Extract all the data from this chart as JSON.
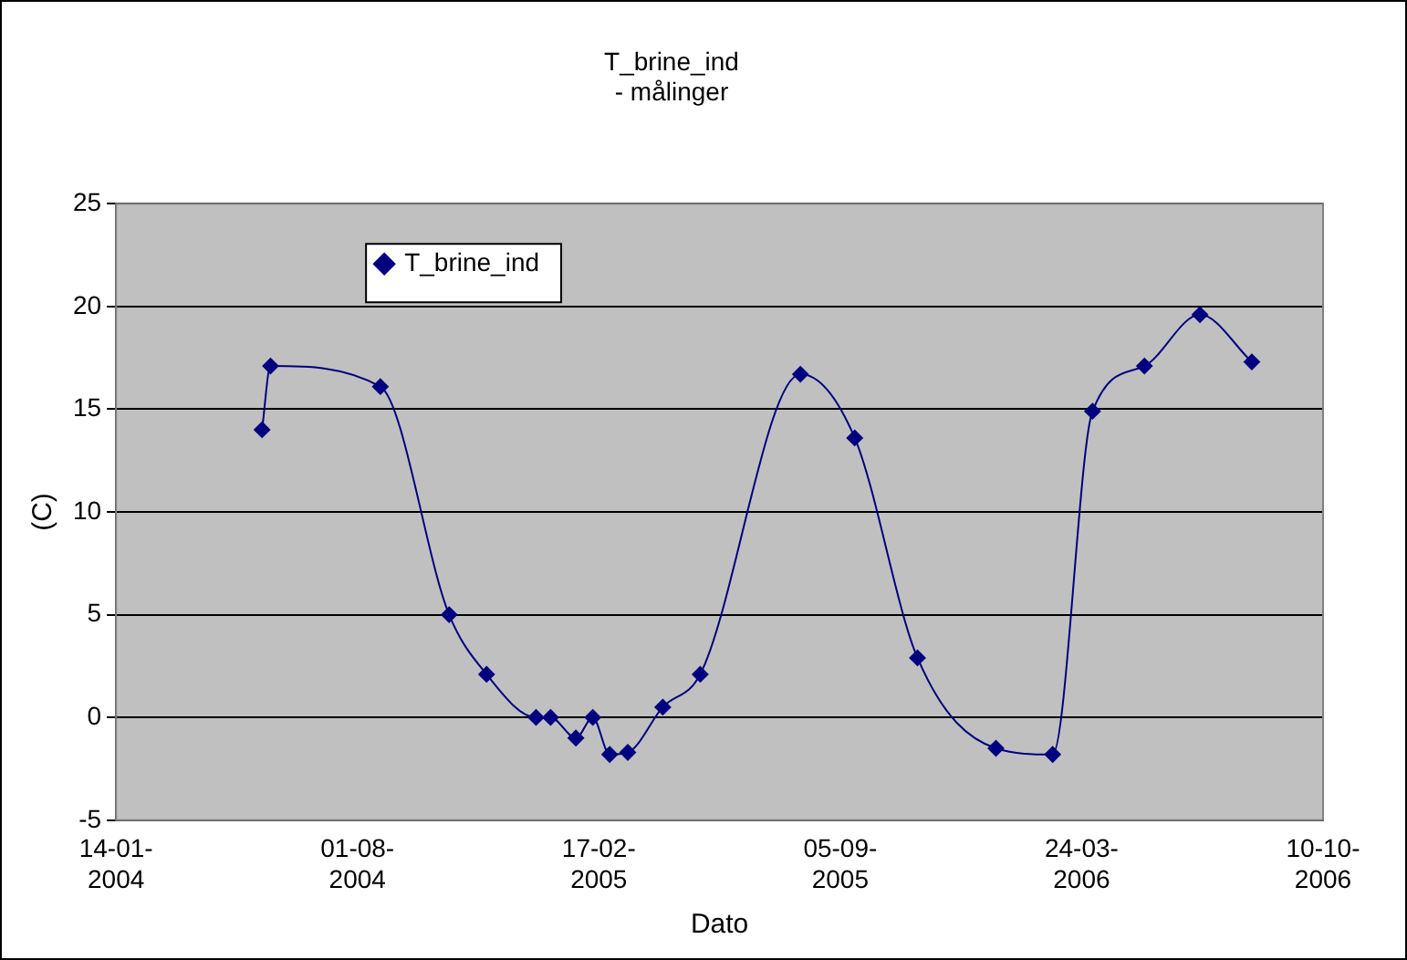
{
  "chart_data": {
    "type": "line",
    "title": "T_brine_ind",
    "subtitle": "- målinger",
    "xlabel": "Dato",
    "ylabel": "(C)",
    "x": [
      "2004-05-14",
      "2004-05-21",
      "2004-08-20",
      "2004-10-16",
      "2004-11-16",
      "2004-12-27",
      "2005-01-08",
      "2005-01-29",
      "2005-02-12",
      "2005-02-26",
      "2005-03-13",
      "2005-04-11",
      "2005-05-12",
      "2005-08-03",
      "2005-09-17",
      "2005-11-08",
      "2006-01-12",
      "2006-02-28",
      "2006-04-02",
      "2006-05-15",
      "2006-06-30",
      "2006-08-12"
    ],
    "series": [
      {
        "name": "T_brine_ind",
        "color": "#000080",
        "values": [
          14,
          17.1,
          16.1,
          5.0,
          2.1,
          0,
          0,
          -1,
          0,
          -1.8,
          -1.7,
          0.5,
          2.1,
          16.7,
          13.6,
          2.9,
          -1.5,
          -1.8,
          14.9,
          17.1,
          19.6,
          17.3
        ]
      }
    ],
    "xlim": [
      "2004-01-14",
      "2006-10-10"
    ],
    "xticks": [
      {
        "value": "2004-01-14",
        "label": "14-01-2004"
      },
      {
        "value": "2004-08-01",
        "label": "01-08-2004"
      },
      {
        "value": "2005-02-17",
        "label": "17-02-2005"
      },
      {
        "value": "2005-09-05",
        "label": "05-09-2005"
      },
      {
        "value": "2006-03-24",
        "label": "24-03-2006"
      },
      {
        "value": "2006-10-10",
        "label": "10-10-2006"
      }
    ],
    "ylim": [
      -5,
      25
    ],
    "yticks": [
      -5,
      0,
      5,
      10,
      15,
      20,
      25
    ],
    "grid": "y",
    "legend": "top left",
    "marker": "diamond",
    "line_style": "solid"
  }
}
